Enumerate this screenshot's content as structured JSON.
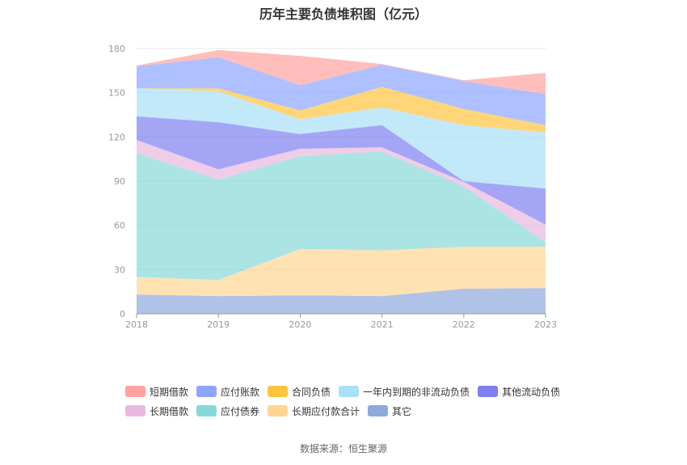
{
  "title": "历年主要负债堆积图（亿元）",
  "source": "数据来源：恒生聚源",
  "chart_data": {
    "type": "area",
    "stacked": true,
    "x": [
      "2018",
      "2019",
      "2020",
      "2021",
      "2022",
      "2023"
    ],
    "ylim": [
      0,
      180
    ],
    "yticks": [
      0,
      30,
      60,
      90,
      120,
      150,
      180
    ],
    "grid": true,
    "legend_position": "bottom",
    "series": [
      {
        "name": "其它",
        "color": "#8eaadb",
        "values": [
          13,
          12,
          12.5,
          12,
          17,
          17.5
        ]
      },
      {
        "name": "长期应付款合计",
        "color": "#ffd591",
        "values": [
          12,
          11,
          31.5,
          31,
          28.5,
          28
        ]
      },
      {
        "name": "应付债券",
        "color": "#87d9d9",
        "values": [
          84,
          68,
          63,
          67,
          41,
          3
        ]
      },
      {
        "name": "长期借款",
        "color": "#e8b8e0",
        "values": [
          9,
          7,
          5,
          3,
          3,
          12
        ]
      },
      {
        "name": "其他流动负债",
        "color": "#7f7ff2",
        "values": [
          16,
          32,
          10,
          15,
          0.5,
          24.5
        ]
      },
      {
        "name": "一年内到期的非流动负债",
        "color": "#a8e0f8",
        "values": [
          19,
          21,
          10,
          12,
          38,
          38
        ]
      },
      {
        "name": "合同负债",
        "color": "#ffc53d",
        "values": [
          0,
          2,
          6,
          14,
          11,
          5
        ]
      },
      {
        "name": "应付账款",
        "color": "#8ca5ff",
        "values": [
          15,
          21,
          17,
          15,
          19,
          21
        ]
      },
      {
        "name": "短期借款",
        "color": "#ffa39e",
        "values": [
          0.5,
          5,
          20,
          0.5,
          0.5,
          14.5
        ]
      }
    ],
    "legend_order": [
      "短期借款",
      "应付账款",
      "合同负债",
      "一年内到期的非流动负债",
      "其他流动负债",
      "长期借款",
      "应付债券",
      "长期应付款合计",
      "其它"
    ]
  }
}
